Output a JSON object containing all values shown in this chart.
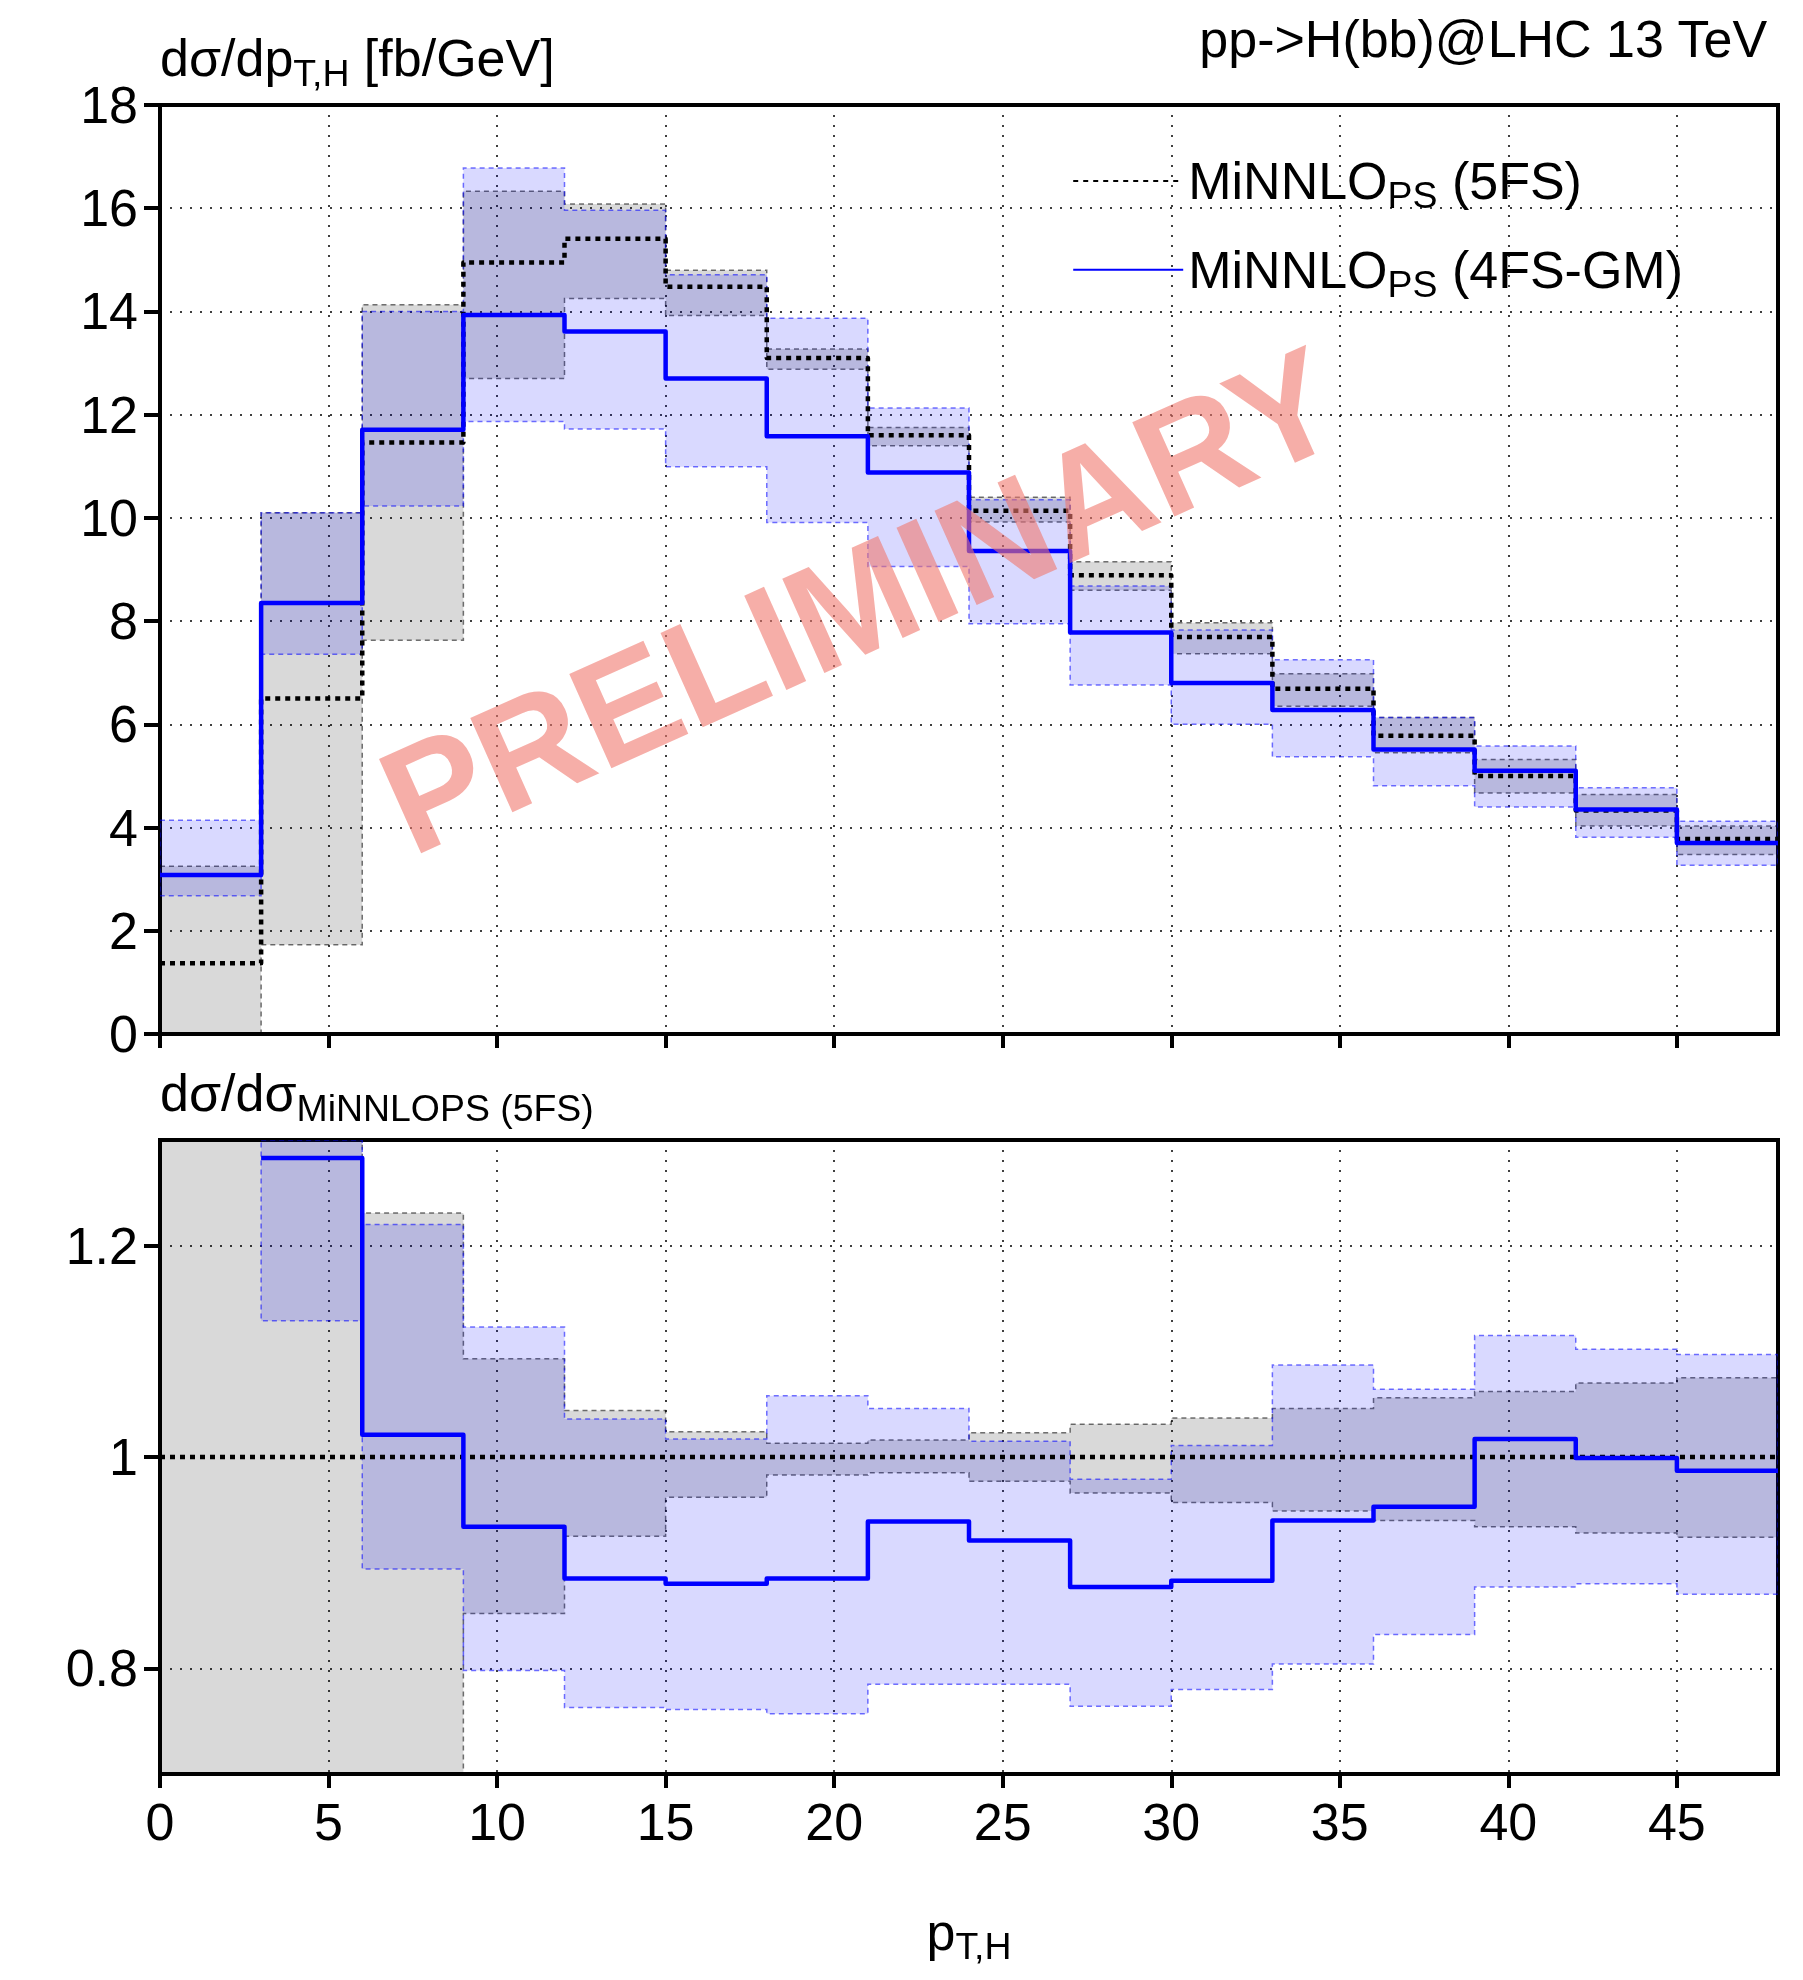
{
  "chart_data": [
    {
      "type": "step",
      "title": "pp->H(bb)@LHC 13 TeV",
      "ylabel": "dσ/dp$_{T,H}$ [fb/GeV]",
      "annotations": [
        "PRELIMINARY"
      ],
      "x": [
        0,
        3,
        6,
        9,
        12,
        15,
        18,
        21,
        24,
        27,
        30,
        33,
        36,
        39,
        42,
        45,
        48
      ],
      "series": [
        {
          "name": "MiNNLO$_{PS}$ (5FS)",
          "color": "#000000",
          "line_style": "dotted",
          "values": [
            1.37,
            6.5,
            11.46,
            14.95,
            15.41,
            14.48,
            13.1,
            11.6,
            10.14,
            8.89,
            7.69,
            6.69,
            5.78,
            5.0,
            4.33,
            3.78,
            3.78
          ],
          "lower": [
            0,
            1.73,
            7.63,
            12.7,
            14.25,
            13.92,
            12.88,
            11.4,
            9.92,
            8.6,
            7.37,
            6.35,
            5.45,
            4.67,
            4.03,
            3.48,
            3.48
          ],
          "upper": [
            3.25,
            10.1,
            14.13,
            16.33,
            16.08,
            14.8,
            13.27,
            11.75,
            10.4,
            9.15,
            7.97,
            6.98,
            6.13,
            5.32,
            4.64,
            4.03,
            4.03
          ]
        },
        {
          "name": "MiNNLO$_{PS}$ (4FS-GM)",
          "color": "#0000ff",
          "line_style": "solid",
          "values": [
            3.08,
            8.35,
            11.71,
            13.93,
            13.61,
            12.7,
            11.58,
            10.88,
            9.36,
            7.78,
            6.8,
            6.28,
            5.51,
            5.1,
            4.35,
            3.7,
            3.7
          ],
          "lower": [
            2.68,
            7.36,
            10.23,
            11.87,
            11.72,
            10.99,
            9.91,
            9.06,
            7.95,
            6.76,
            6.0,
            5.37,
            4.81,
            4.4,
            3.81,
            3.27,
            3.27
          ],
          "upper": [
            4.14,
            10.1,
            14.0,
            16.78,
            15.96,
            14.71,
            13.87,
            12.13,
            10.35,
            8.68,
            7.83,
            7.25,
            6.13,
            5.58,
            4.77,
            4.12,
            4.12
          ]
        }
      ],
      "xlim": [
        0,
        48
      ],
      "xticks": [
        0,
        5,
        10,
        15,
        20,
        25,
        30,
        35,
        40,
        45
      ],
      "ylim": [
        0,
        18
      ],
      "yticks": [
        0,
        2,
        4,
        6,
        8,
        10,
        12,
        14,
        16,
        18
      ],
      "grid": true,
      "legend": "top right",
      "tick_labels": "y"
    },
    {
      "type": "step",
      "ylabel": "dσ/dσ$_{MiNNLO}$$_{PS}$$_{ (5FS)}$",
      "xlabel": "p$_{T,H}$",
      "x": [
        0,
        3,
        6,
        9,
        12,
        15,
        18,
        21,
        24,
        27,
        30,
        33,
        36,
        39,
        42,
        45,
        48
      ],
      "series": [
        {
          "color": "#000000",
          "line_style": "dotted",
          "values": [
            1,
            1,
            1,
            1,
            1,
            1,
            1,
            1,
            1,
            1,
            1,
            1,
            1,
            1,
            1,
            1,
            1
          ],
          "lower": [
            0.7,
            0.7,
            0.7,
            0.852,
            0.925,
            0.962,
            0.983,
            0.985,
            0.977,
            0.966,
            0.957,
            0.949,
            0.94,
            0.934,
            0.928,
            0.924,
            0.924
          ],
          "upper": [
            1.3,
            1.3,
            1.231,
            1.093,
            1.044,
            1.024,
            1.013,
            1.016,
            1.023,
            1.031,
            1.037,
            1.046,
            1.056,
            1.062,
            1.07,
            1.075,
            1.075
          ]
        },
        {
          "color": "#0000ff",
          "line_style": "solid",
          "values": [
            null,
            1.283,
            1.021,
            0.934,
            0.885,
            0.88,
            0.885,
            0.939,
            0.921,
            0.877,
            0.883,
            0.94,
            0.953,
            1.017,
            0.999,
            0.987,
            0.987
          ],
          "lower": [
            null,
            1.129,
            0.894,
            0.798,
            0.763,
            0.761,
            0.757,
            0.785,
            0.785,
            0.764,
            0.78,
            0.804,
            0.832,
            0.877,
            0.88,
            0.87,
            0.87
          ],
          "upper": [
            null,
            1.3,
            1.22,
            1.123,
            1.036,
            1.017,
            1.058,
            1.046,
            1.015,
            0.979,
            1.011,
            1.087,
            1.064,
            1.115,
            1.102,
            1.097,
            1.097
          ]
        }
      ],
      "xlim": [
        0,
        48
      ],
      "xticks": [
        0,
        5,
        10,
        15,
        20,
        25,
        30,
        35,
        40,
        45
      ],
      "ylim": [
        0.7,
        1.3
      ],
      "yticks": [
        0.8,
        1,
        1.2
      ],
      "grid": true
    }
  ]
}
